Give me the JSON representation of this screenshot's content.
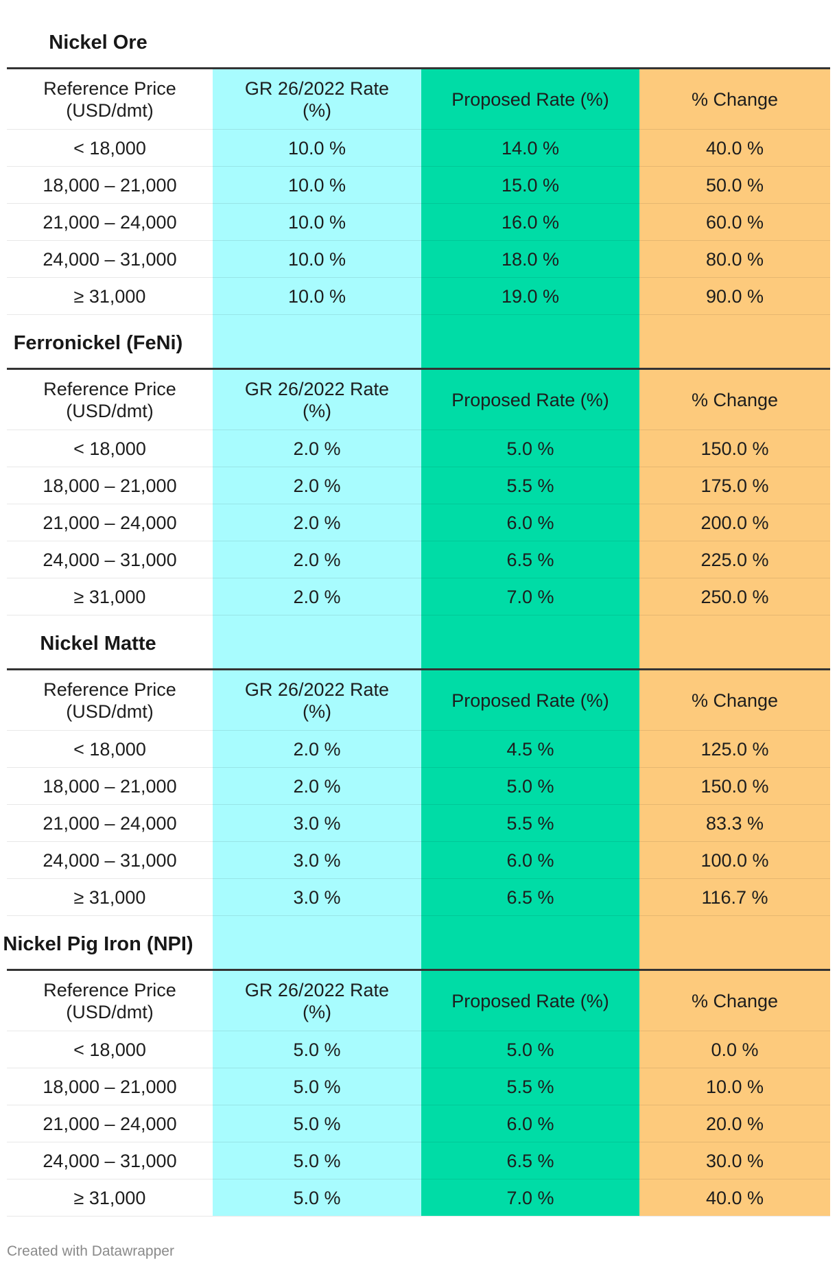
{
  "columns": {
    "price_line1": "Reference Price",
    "price_line2": "(USD/dmt)",
    "gr_line1": "GR 26/2022 Rate",
    "gr_line2": "(%)",
    "proposed": "Proposed Rate (%)",
    "change": "% Change"
  },
  "column_colors": {
    "gr": "#a8fcfe",
    "proposed": "#00dca6",
    "change": "#fdca7c"
  },
  "chart_data": {
    "type": "table",
    "sections": [
      {
        "title": "Nickel Ore",
        "rows": [
          [
            "< 18,000",
            "10.0 %",
            "14.0 %",
            "40.0 %"
          ],
          [
            "18,000 – 21,000",
            "10.0 %",
            "15.0 %",
            "50.0 %"
          ],
          [
            "21,000 – 24,000",
            "10.0 %",
            "16.0 %",
            "60.0 %"
          ],
          [
            "24,000 – 31,000",
            "10.0 %",
            "18.0 %",
            "80.0 %"
          ],
          [
            "≥ 31,000",
            "10.0 %",
            "19.0 %",
            "90.0 %"
          ]
        ]
      },
      {
        "title": "Ferronickel (FeNi)",
        "rows": [
          [
            "< 18,000",
            "2.0 %",
            "5.0 %",
            "150.0 %"
          ],
          [
            "18,000 – 21,000",
            "2.0 %",
            "5.5 %",
            "175.0 %"
          ],
          [
            "21,000 – 24,000",
            "2.0 %",
            "6.0 %",
            "200.0 %"
          ],
          [
            "24,000 – 31,000",
            "2.0 %",
            "6.5 %",
            "225.0 %"
          ],
          [
            "≥ 31,000",
            "2.0 %",
            "7.0 %",
            "250.0 %"
          ]
        ]
      },
      {
        "title": "Nickel Matte",
        "rows": [
          [
            "< 18,000",
            "2.0 %",
            "4.5 %",
            "125.0 %"
          ],
          [
            "18,000 – 21,000",
            "2.0 %",
            "5.0 %",
            "150.0 %"
          ],
          [
            "21,000 – 24,000",
            "3.0 %",
            "5.5 %",
            "83.3 %"
          ],
          [
            "24,000 – 31,000",
            "3.0 %",
            "6.0 %",
            "100.0 %"
          ],
          [
            "≥ 31,000",
            "3.0 %",
            "6.5 %",
            "116.7 %"
          ]
        ]
      },
      {
        "title": "Nickel Pig Iron (NPI)",
        "rows": [
          [
            "< 18,000",
            "5.0 %",
            "5.0 %",
            "0.0 %"
          ],
          [
            "18,000 – 21,000",
            "5.0 %",
            "5.5 %",
            "10.0 %"
          ],
          [
            "21,000 – 24,000",
            "5.0 %",
            "6.0 %",
            "20.0 %"
          ],
          [
            "24,000 – 31,000",
            "5.0 %",
            "6.5 %",
            "30.0 %"
          ],
          [
            "≥ 31,000",
            "5.0 %",
            "7.0 %",
            "40.0 %"
          ]
        ]
      }
    ]
  },
  "footer": "Created with Datawrapper"
}
